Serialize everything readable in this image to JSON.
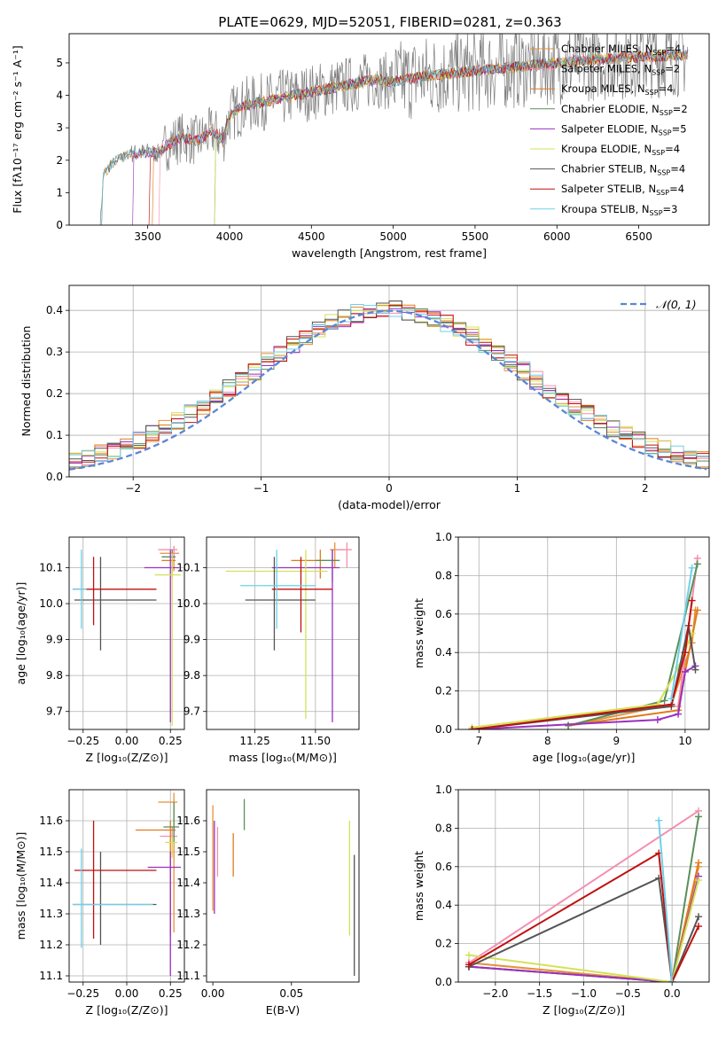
{
  "title": "PLATE=0629, MJD=52051, FIBERID=0281, z=0.363",
  "colors": [
    "#ff7f0e",
    "#f781bf",
    "#ff8c00",
    "#4c8c4a",
    "#9b30c0",
    "#d4e157",
    "#555555",
    "#c0100f",
    "#6fd0e8"
  ],
  "legend_entries": [
    {
      "label": "Chabrier MILES, N",
      "sub": "SSP",
      "suffix": "=4",
      "color": "#e69138"
    },
    {
      "label": "Salpeter MILES, N",
      "sub": "SSP",
      "suffix": "=2",
      "color": "#f48fb1"
    },
    {
      "label": "Kroupa MILES, N",
      "sub": "SSP",
      "suffix": "=4",
      "color": "#e07b1a"
    },
    {
      "label": "Chabrier ELODIE, N",
      "sub": "SSP",
      "suffix": "=2",
      "color": "#5a8f5a"
    },
    {
      "label": "Salpeter ELODIE, N",
      "sub": "SSP",
      "suffix": "=5",
      "color": "#9b30c0"
    },
    {
      "label": "Kroupa ELODIE, N",
      "sub": "SSP",
      "suffix": "=4",
      "color": "#d4e157"
    },
    {
      "label": "Chabrier STELIB, N",
      "sub": "SSP",
      "suffix": "=4",
      "color": "#555555"
    },
    {
      "label": "Salpeter STELIB, N",
      "sub": "SSP",
      "suffix": "=4",
      "color": "#c0100f"
    },
    {
      "label": "Kroupa STELIB, N",
      "sub": "SSP",
      "suffix": "=3",
      "color": "#6fd0e8"
    }
  ],
  "chart_data": [
    {
      "id": "spectrum",
      "type": "line",
      "xlabel": "wavelength [Angstrom, rest frame]",
      "ylabel": "Flux [fλ10⁻¹⁷ erg cm⁻² s⁻¹ A⁻¹]",
      "xlim": [
        3020,
        6930
      ],
      "ylim": [
        0,
        5.9
      ],
      "xticks": [
        3500,
        4000,
        4500,
        5000,
        5500,
        6000,
        6500
      ],
      "yticks": [
        0,
        1,
        2,
        3,
        4,
        5
      ],
      "series": [
        {
          "x": [
            3210,
            3230,
            3300,
            3400,
            3500,
            3560,
            3600,
            3700,
            3800,
            3900,
            3960,
            4000,
            4100,
            4300,
            4500,
            4700,
            4900,
            5000,
            5200,
            5400,
            5600,
            5800,
            6000,
            6200,
            6400,
            6600,
            6800
          ],
          "y": [
            0,
            1.6,
            2.0,
            2.2,
            2.25,
            2.2,
            2.4,
            2.7,
            2.6,
            2.9,
            2.6,
            3.4,
            3.7,
            3.9,
            4.1,
            4.3,
            4.5,
            4.4,
            4.6,
            4.7,
            4.8,
            4.9,
            5.0,
            5.1,
            5.15,
            5.2,
            5.25
          ]
        }
      ]
    },
    {
      "id": "residuals",
      "type": "line",
      "xlabel": "(data-model)/error",
      "ylabel": "Normed distribution",
      "xlim": [
        -2.5,
        2.5
      ],
      "ylim": [
        0,
        0.46
      ],
      "xticks": [
        -2,
        -1,
        0,
        1,
        2
      ],
      "yticks": [
        0.0,
        0.1,
        0.2,
        0.3,
        0.4
      ],
      "grid": true,
      "legend": "top-right",
      "gaussian_label": "𝒩(0, 1)",
      "hist_bin_width": 0.1
    },
    {
      "id": "age_Z",
      "type": "scatter",
      "xlabel": "Z [log₁₀(Z/Z⊙)]",
      "ylabel": "age  [log₁₀(age/yr)]",
      "xlim": [
        -0.33,
        0.33
      ],
      "ylim": [
        9.65,
        10.185
      ],
      "xticks": [
        -0.25,
        0.0,
        0.25
      ],
      "yticks": [
        9.7,
        9.8,
        9.9,
        10.0,
        10.1
      ],
      "grid": true,
      "points": [
        {
          "x": 0.27,
          "y": 10.14,
          "xerr": [
            0.08,
            0.03
          ],
          "yerr": [
            0.05,
            0.02
          ]
        },
        {
          "x": 0.27,
          "y": 10.15,
          "xerr": [
            0.09,
            0.02
          ],
          "yerr": [
            0.03,
            0.01
          ]
        },
        {
          "x": 0.26,
          "y": 10.12,
          "xerr": [
            0.06,
            0.02
          ],
          "yerr": [
            0.05,
            0.02
          ]
        },
        {
          "x": 0.26,
          "y": 10.13,
          "xerr": [
            0.06,
            0.02
          ],
          "yerr": [
            0.04,
            0.02
          ]
        },
        {
          "x": 0.25,
          "y": 10.1,
          "xerr": [
            0.15,
            0.05
          ],
          "yerr": [
            0.43,
            0.05
          ]
        },
        {
          "x": 0.26,
          "y": 10.08,
          "xerr": [
            0.1,
            0.05
          ],
          "yerr": [
            0.42,
            0.06
          ]
        },
        {
          "x": -0.15,
          "y": 10.01,
          "xerr": [
            0.15,
            0.32
          ],
          "yerr": [
            0.14,
            0.12
          ]
        },
        {
          "x": -0.19,
          "y": 10.04,
          "xerr": [
            0.12,
            0.36
          ],
          "yerr": [
            0.1,
            0.09
          ]
        },
        {
          "x": -0.26,
          "y": 10.04,
          "xerr": [
            0.05,
            0.03
          ],
          "yerr": [
            0.11,
            0.11
          ]
        }
      ]
    },
    {
      "id": "age_mass",
      "type": "scatter",
      "xlabel": "mass [log₁₀(M/M⊙)]",
      "ylabel": "",
      "xlim": [
        11.05,
        11.68
      ],
      "ylim": [
        9.65,
        10.185
      ],
      "xticks": [
        11.25,
        11.5
      ],
      "yticks": [
        9.7,
        9.8,
        9.9,
        10.0,
        10.1
      ],
      "grid": true,
      "points": [
        {
          "x": 11.58,
          "y": 10.15,
          "xerr": [
            0.02,
            0.04
          ],
          "yerr": [
            0.05,
            0.02
          ]
        },
        {
          "x": 11.63,
          "y": 10.15,
          "xerr": [
            0.05,
            0.02
          ],
          "yerr": [
            0.05,
            0.02
          ]
        },
        {
          "x": 11.52,
          "y": 10.12,
          "xerr": [
            0.12,
            0.08
          ],
          "yerr": [
            0.05,
            0.03
          ]
        },
        {
          "x": 11.57,
          "y": 10.12,
          "xerr": [
            0.07,
            0.03
          ],
          "yerr": [
            0.06,
            0.03
          ]
        },
        {
          "x": 11.57,
          "y": 10.1,
          "xerr": [
            0.25,
            0.03
          ],
          "yerr": [
            0.43,
            0.05
          ]
        },
        {
          "x": 11.46,
          "y": 10.09,
          "xerr": [
            0.33,
            0.09
          ],
          "yerr": [
            0.41,
            0.06
          ]
        },
        {
          "x": 11.33,
          "y": 10.01,
          "xerr": [
            0.12,
            0.17
          ],
          "yerr": [
            0.14,
            0.12
          ]
        },
        {
          "x": 11.44,
          "y": 10.04,
          "xerr": [
            0.12,
            0.13
          ],
          "yerr": [
            0.12,
            0.09
          ]
        },
        {
          "x": 11.34,
          "y": 10.05,
          "xerr": [
            0.15,
            0.16
          ],
          "yerr": [
            0.12,
            0.1
          ]
        }
      ]
    },
    {
      "id": "weight_age",
      "type": "line",
      "xlabel": "age  [log₁₀(age/yr)]",
      "ylabel": "mass weight",
      "xlim": [
        6.7,
        10.35
      ],
      "ylim": [
        0,
        1.0
      ],
      "xticks": [
        7,
        8,
        9,
        10
      ],
      "yticks": [
        0.0,
        0.2,
        0.4,
        0.6,
        0.8,
        1.0
      ],
      "grid": true,
      "series": [
        {
          "x": [
            8.3,
            9.8,
            10.1,
            10.15
          ],
          "y": [
            0.02,
            0.13,
            0.45,
            0.62
          ]
        },
        {
          "x": [
            9.9,
            10.18
          ],
          "y": [
            0.12,
            0.89
          ]
        },
        {
          "x": [
            8.3,
            9.9,
            10.0,
            10.18
          ],
          "y": [
            0.02,
            0.1,
            0.3,
            0.62
          ]
        },
        {
          "x": [
            8.3,
            9.7,
            10.18
          ],
          "y": [
            0.02,
            0.15,
            0.86
          ]
        },
        {
          "x": [
            6.9,
            9.6,
            9.9,
            10.0,
            10.15
          ],
          "y": [
            0.0,
            0.05,
            0.08,
            0.3,
            0.33
          ]
        },
        {
          "x": [
            6.9,
            9.6,
            9.9,
            10.1
          ],
          "y": [
            0.01,
            0.13,
            0.32,
            0.5
          ]
        },
        {
          "x": [
            6.9,
            9.8,
            10.05,
            10.15
          ],
          "y": [
            0.0,
            0.12,
            0.54,
            0.31
          ]
        },
        {
          "x": [
            6.9,
            9.8,
            10.0,
            10.1
          ],
          "y": [
            0.0,
            0.13,
            0.4,
            0.67
          ]
        },
        {
          "x": [
            9.8,
            10.1
          ],
          "y": [
            0.16,
            0.84
          ]
        }
      ]
    },
    {
      "id": "mass_Z",
      "type": "scatter",
      "xlabel": "Z [log₁₀(Z/Z⊙)]",
      "ylabel": "mass [log₁₀(M/M⊙)]",
      "xlim": [
        -0.33,
        0.33
      ],
      "ylim": [
        11.08,
        11.7
      ],
      "xticks": [
        -0.25,
        0.0,
        0.25
      ],
      "yticks": [
        11.1,
        11.2,
        11.3,
        11.4,
        11.5,
        11.6
      ],
      "grid": true,
      "points": [
        {
          "x": 0.27,
          "y": 11.66,
          "xerr": [
            0.09,
            0.02
          ],
          "yerr": [
            0.42,
            0.03
          ]
        },
        {
          "x": 0.26,
          "y": 11.55,
          "xerr": [
            0.07,
            0.03
          ],
          "yerr": [
            0.06,
            0.03
          ]
        },
        {
          "x": 0.25,
          "y": 11.57,
          "xerr": [
            0.2,
            0.03
          ],
          "yerr": [
            0.34,
            0.03
          ]
        },
        {
          "x": 0.27,
          "y": 11.58,
          "xerr": [
            0.06,
            0.03
          ],
          "yerr": [
            0.05,
            0.08
          ]
        },
        {
          "x": 0.25,
          "y": 11.45,
          "xerr": [
            0.13,
            0.06
          ],
          "yerr": [
            0.35,
            0.05
          ]
        },
        {
          "x": 0.26,
          "y": 11.53,
          "xerr": [
            0.04,
            0.03
          ],
          "yerr": [
            0.05,
            0.02
          ]
        },
        {
          "x": -0.15,
          "y": 11.33,
          "xerr": [
            0.16,
            0.32
          ],
          "yerr": [
            0.13,
            0.17
          ]
        },
        {
          "x": -0.19,
          "y": 11.44,
          "xerr": [
            0.11,
            0.36
          ],
          "yerr": [
            0.22,
            0.16
          ]
        },
        {
          "x": -0.26,
          "y": 11.33,
          "xerr": [
            0.05,
            0.41
          ],
          "yerr": [
            0.14,
            0.18
          ]
        }
      ]
    },
    {
      "id": "mass_ebv",
      "type": "scatter",
      "xlabel": "E(B-V)",
      "ylabel": "",
      "xlim": [
        -0.004,
        0.093
      ],
      "ylim": [
        11.08,
        11.7
      ],
      "xticks": [
        0.0,
        0.05
      ],
      "yticks": [
        11.1,
        11.2,
        11.3,
        11.4,
        11.5,
        11.6
      ],
      "grid": false,
      "points": [
        {
          "x": 0.0,
          "y": 11.45,
          "yerr": [
            0.14,
            0.2
          ]
        },
        {
          "x": 0.003,
          "y": 11.5,
          "yerr": [
            0.08,
            0.08
          ]
        },
        {
          "x": 0.013,
          "y": 11.5,
          "yerr": [
            0.08,
            0.06
          ]
        },
        {
          "x": 0.02,
          "y": 11.62,
          "yerr": [
            0.05,
            0.05
          ]
        },
        {
          "x": 0.001,
          "y": 11.55,
          "yerr": [
            0.25,
            0.05
          ]
        },
        {
          "x": 0.087,
          "y": 11.4,
          "yerr": [
            0.17,
            0.2
          ]
        },
        {
          "x": 0.09,
          "y": 11.3,
          "yerr": [
            0.2,
            0.19
          ]
        }
      ]
    },
    {
      "id": "weight_Z",
      "type": "line",
      "xlabel": "Z [log₁₀(Z/Z⊙)]",
      "ylabel": "mass weight",
      "xlim": [
        -2.42,
        0.42
      ],
      "ylim": [
        0,
        1.0
      ],
      "xticks": [
        -2.0,
        -1.5,
        -1.0,
        -0.5,
        0.0
      ],
      "yticks": [
        0.0,
        0.2,
        0.4,
        0.6,
        0.8,
        1.0
      ],
      "grid": true,
      "series": [
        {
          "x": [
            -2.3,
            0.0,
            0.3
          ],
          "y": [
            0.1,
            0.0,
            0.6
          ]
        },
        {
          "x": [
            -2.3,
            0.3
          ],
          "y": [
            0.1,
            0.89
          ]
        },
        {
          "x": [
            -2.3,
            0.0,
            0.3
          ],
          "y": [
            0.08,
            0.0,
            0.62
          ]
        },
        {
          "x": [
            -2.3,
            0.0,
            0.3
          ],
          "y": [
            0.08,
            0.0,
            0.86
          ]
        },
        {
          "x": [
            -2.3,
            0.0,
            0.3
          ],
          "y": [
            0.08,
            0.0,
            0.55
          ]
        },
        {
          "x": [
            -2.3,
            0.0,
            0.3
          ],
          "y": [
            0.14,
            0.0,
            0.53
          ]
        },
        {
          "x": [
            -2.3,
            -0.15,
            0.0,
            0.3
          ],
          "y": [
            0.08,
            0.54,
            0.0,
            0.34
          ]
        },
        {
          "x": [
            -2.3,
            -0.15,
            0.0,
            0.3
          ],
          "y": [
            0.09,
            0.67,
            0.0,
            0.29
          ]
        },
        {
          "x": [
            -0.15,
            0.0
          ],
          "y": [
            0.84,
            0.0
          ]
        }
      ]
    }
  ]
}
